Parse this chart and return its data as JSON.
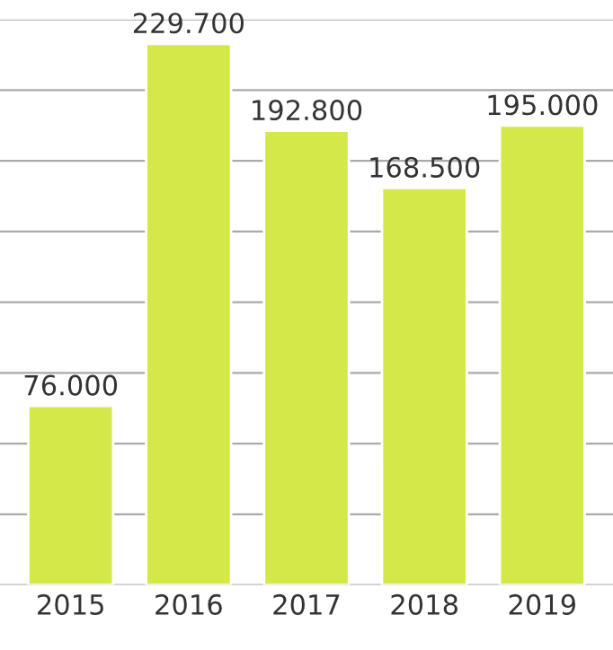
{
  "chart_data": {
    "type": "bar",
    "categories": [
      "2015",
      "2016",
      "2017",
      "2018",
      "2019"
    ],
    "values": [
      76000,
      229700,
      192800,
      168500,
      195000
    ],
    "value_labels": [
      "76.000",
      "229.700",
      "192.800",
      "168.500",
      "195.000"
    ],
    "color": "#d4e84a",
    "ylim": [
      0,
      240000
    ],
    "yticks": [
      {
        "value": 0,
        "label": null
      },
      {
        "value": 30000,
        "label": null
      },
      {
        "value": 60000,
        "label": null
      },
      {
        "value": 90000,
        "label": null
      },
      {
        "value": 120000,
        "label": null
      },
      {
        "value": 150000,
        "label": null
      },
      {
        "value": 180000,
        "label": null
      },
      {
        "value": 210000,
        "label": null
      },
      {
        "value": 240000,
        "label": null
      }
    ],
    "tick_labels": "x",
    "grid": "y"
  }
}
